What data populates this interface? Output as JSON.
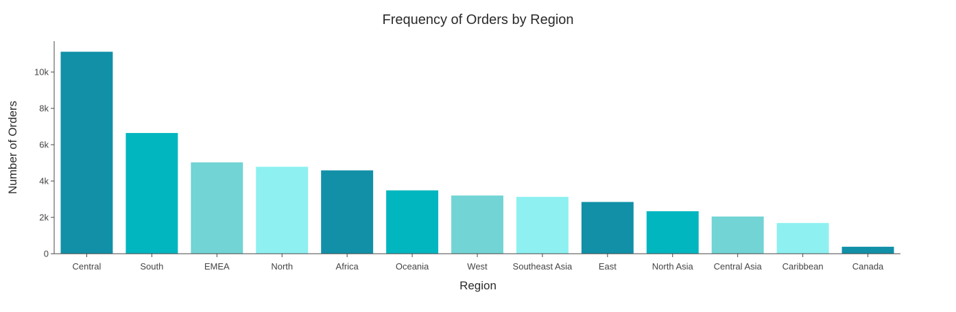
{
  "chart_data": {
    "type": "bar",
    "title": "Frequency of Orders by Region",
    "xlabel": "Region",
    "ylabel": "Number of Orders",
    "categories": [
      "Central",
      "South",
      "EMEA",
      "North",
      "Africa",
      "Oceania",
      "West",
      "Southeast Asia",
      "East",
      "North Asia",
      "Central Asia",
      "Caribbean",
      "Canada"
    ],
    "values": [
      11117,
      6645,
      5029,
      4785,
      4587,
      3487,
      3203,
      3129,
      2848,
      2338,
      2048,
      1690,
      384
    ],
    "ylim": [
      0,
      11700
    ],
    "yticks": [
      0,
      2000,
      4000,
      6000,
      8000,
      10000
    ],
    "ytick_labels": [
      "0",
      "2k",
      "4k",
      "6k",
      "8k",
      "10k"
    ],
    "colors": [
      "#1190a8",
      "#02b6c0",
      "#72d4d4",
      "#8ef0f0"
    ],
    "grid": false,
    "legend": "none"
  }
}
